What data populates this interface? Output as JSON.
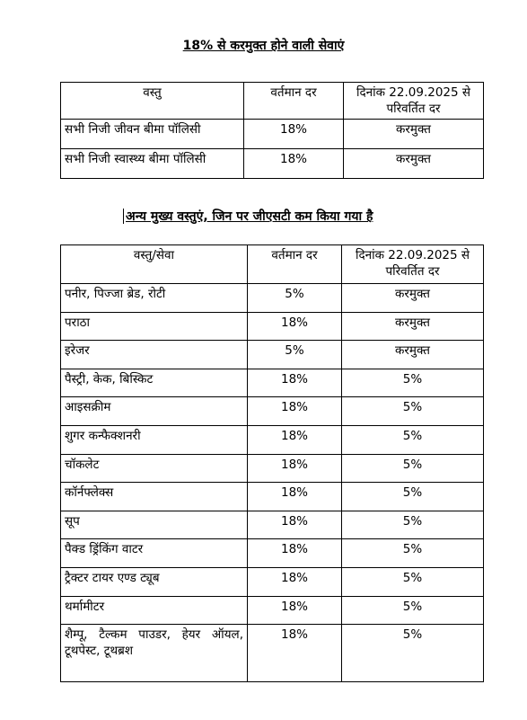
{
  "title1": "18% से करमुक्त होने वाली सेवाएं",
  "table1": {
    "header": [
      "वस्तु",
      "वर्तमान दर",
      "दिनांक 22.09.2025 से परिवर्तित दर"
    ],
    "rows": [
      [
        "सभी निजी जीवन बीमा पॉलिसी",
        "18%",
        "करमुक्त"
      ],
      [
        "सभी निजी स्वास्थ्य बीमा पॉलिसी",
        "18%",
        "करमुक्त"
      ]
    ]
  },
  "title2": "अन्य मुख्य वस्तुएं, जिन पर जीएसटी कम किया गया है",
  "table2": {
    "header": [
      "वस्तु/सेवा",
      "वर्तमान दर",
      "दिनांक 22.09.2025 से परिवर्तित दर"
    ],
    "rows": [
      [
        "पनीर, पिज्जा ब्रेड, रोटी",
        "5%",
        "करमुक्त"
      ],
      [
        "पराठा",
        "18%",
        "करमुक्त"
      ],
      [
        "इरेजर",
        "5%",
        "करमुक्त"
      ],
      [
        "पैस्ट्री, केक, बिस्किट",
        "18%",
        "5%"
      ],
      [
        "आइसक्रीम",
        "18%",
        "5%"
      ],
      [
        "शुगर कन्फैक्शनरी",
        "18%",
        "5%"
      ],
      [
        "चॉकलेट",
        "18%",
        "5%"
      ],
      [
        "कॉर्नफ्लेक्स",
        "18%",
        "5%"
      ],
      [
        "सूप",
        "18%",
        "5%"
      ],
      [
        "पैक्ड ड्रिंकिंग वाटर",
        "18%",
        "5%"
      ],
      [
        "ट्रैक्टर टायर एण्ड ट्यूब",
        "18%",
        "5%"
      ],
      [
        "थर्मामीटर",
        "18%",
        "5%"
      ],
      [
        "शैम्पू, टैल्कम पाउडर, हेयर ऑयल, टूथपेस्ट, टूथब्रश",
        "18%",
        "5%"
      ]
    ]
  }
}
